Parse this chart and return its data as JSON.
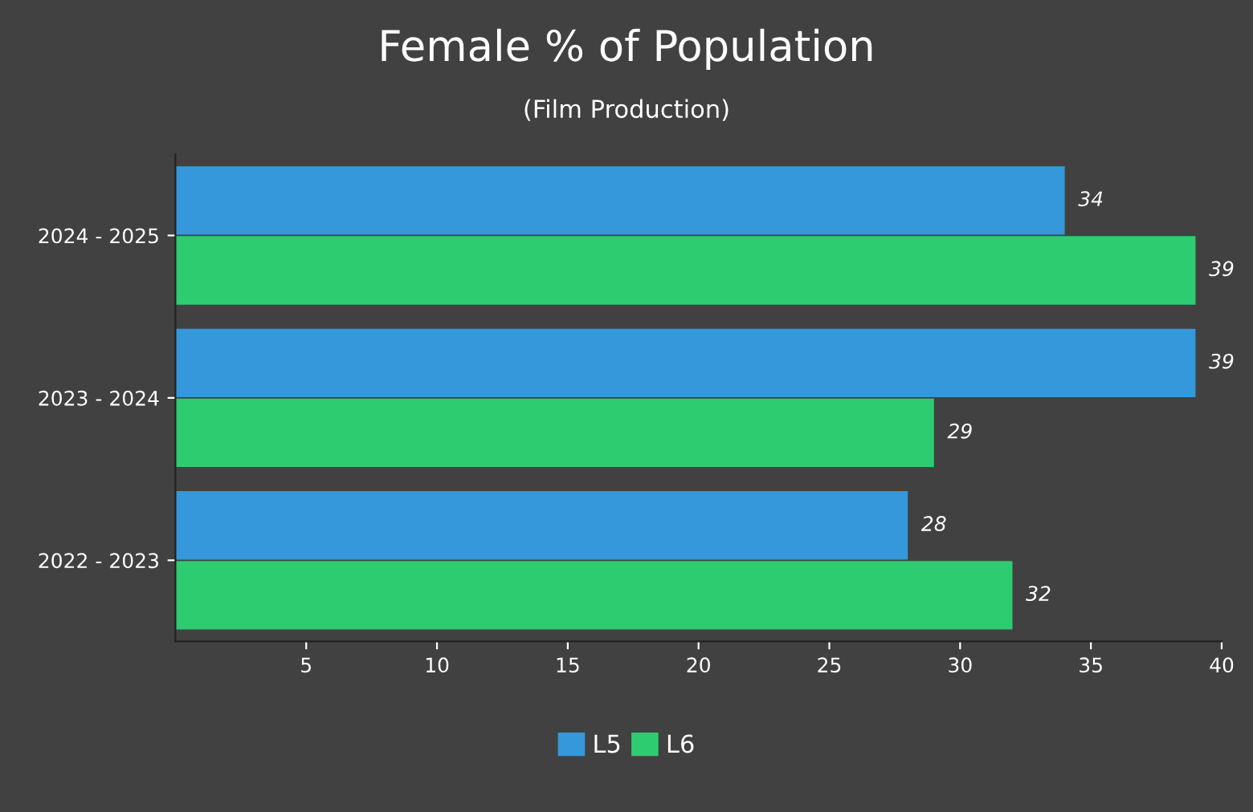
{
  "chart_data": {
    "type": "bar",
    "orientation": "horizontal",
    "title": "Female % of Population",
    "subtitle": "(Film Production)",
    "categories": [
      "2024 - 2025",
      "2023 - 2024",
      "2022 - 2023"
    ],
    "series": [
      {
        "name": "L5",
        "color": "#3498db",
        "values": [
          34,
          39,
          28
        ]
      },
      {
        "name": "L6",
        "color": "#2ecc71",
        "values": [
          39,
          29,
          32
        ]
      }
    ],
    "xlim": [
      0,
      40
    ],
    "xticks": [
      5,
      10,
      15,
      20,
      25,
      30,
      35,
      40
    ],
    "grid": false,
    "legend": "bottom",
    "data_labels": true
  }
}
